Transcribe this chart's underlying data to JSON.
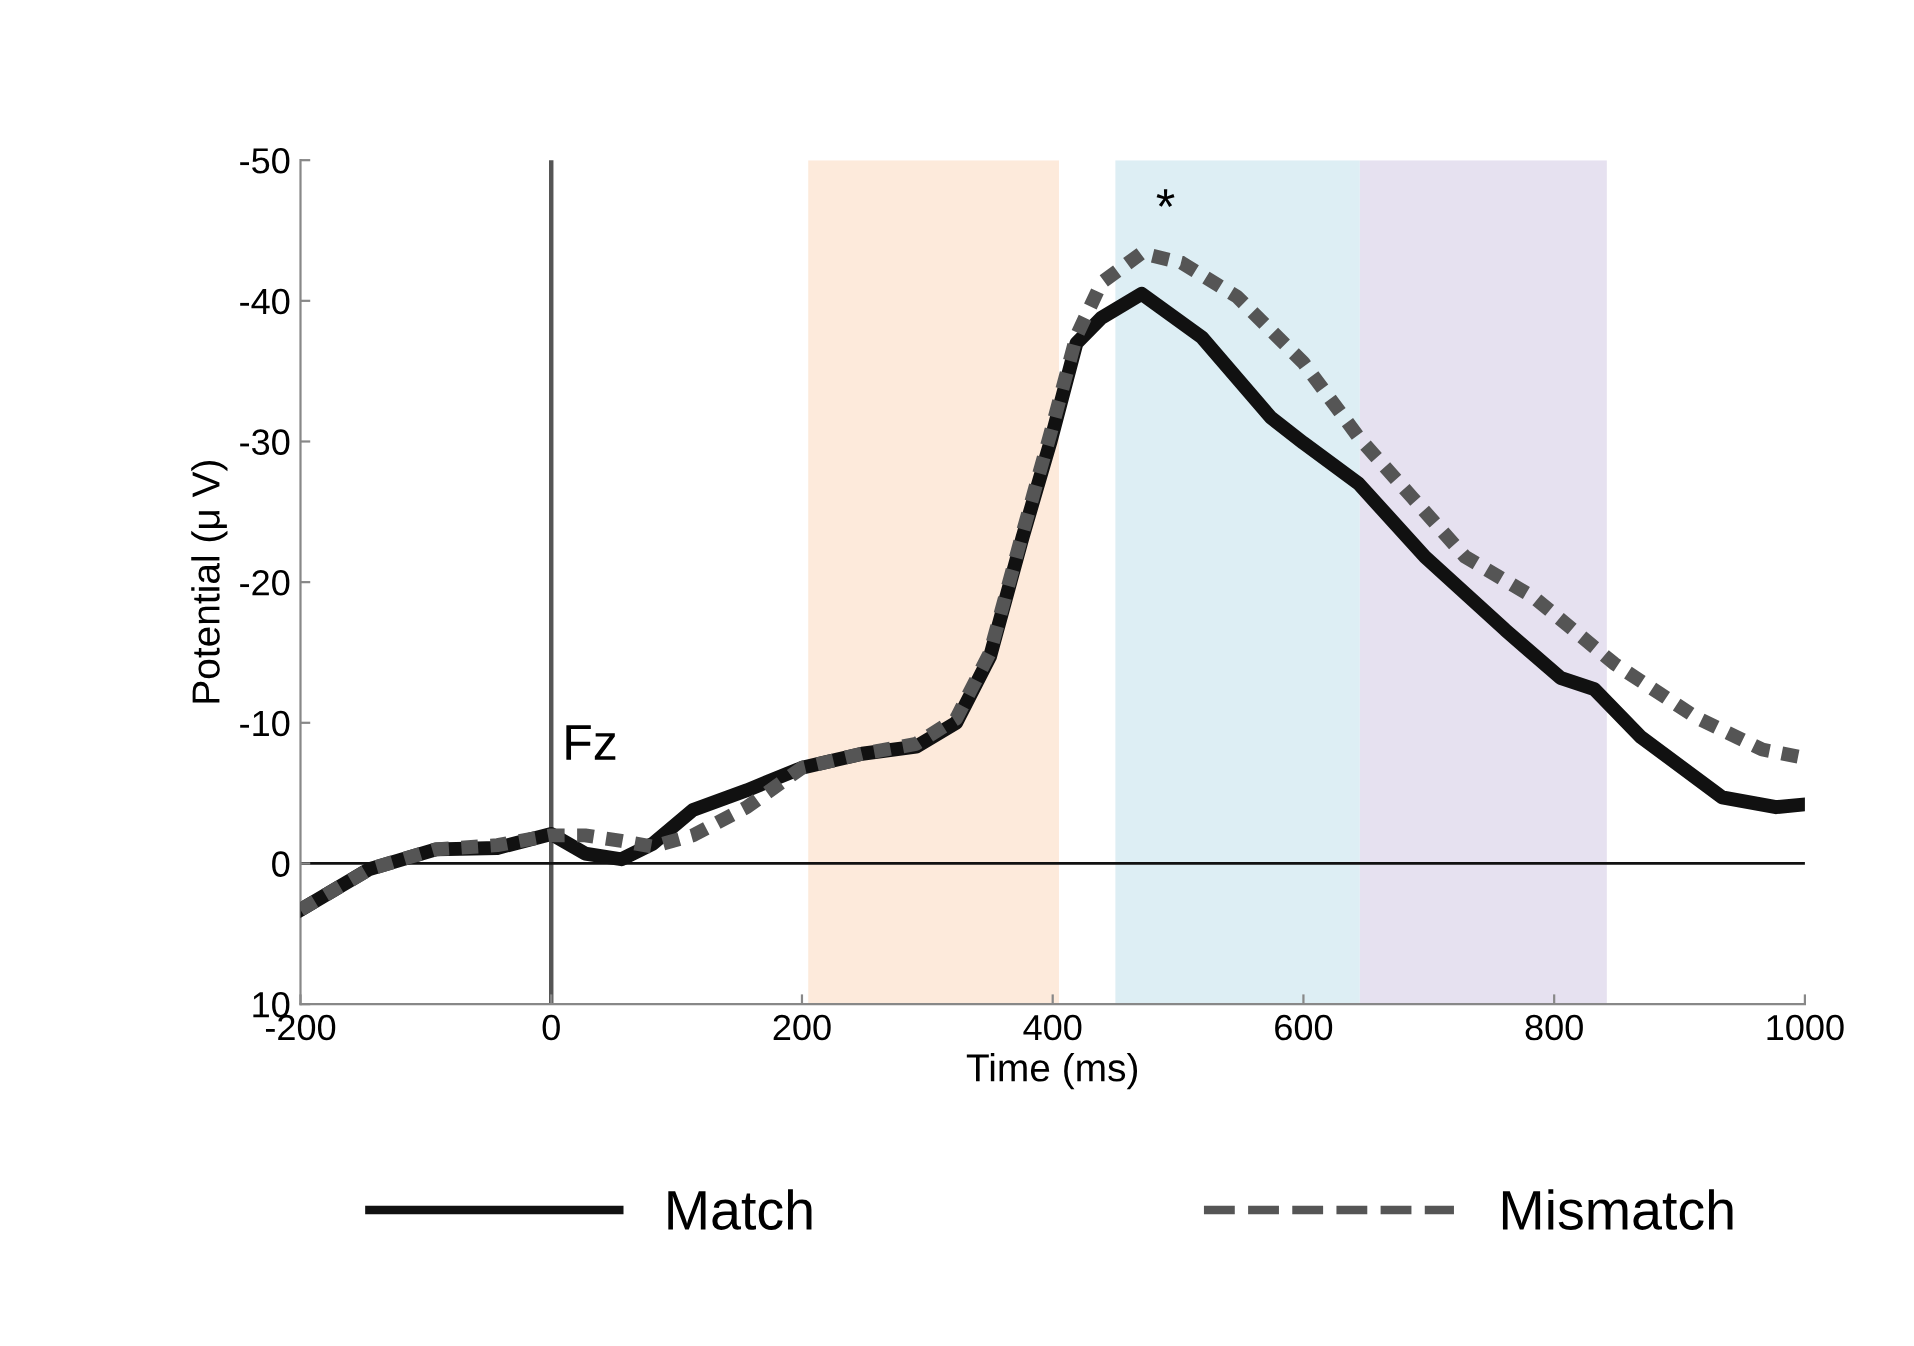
{
  "chart_data": {
    "type": "line",
    "xlabel": "Time (ms)",
    "ylabel": "Potential (μ V)",
    "xlim": [
      -200,
      1000
    ],
    "xticks": [
      -200,
      0,
      200,
      400,
      600,
      800,
      1000
    ],
    "ylim": [
      10,
      -50
    ],
    "yticks": [
      10,
      0,
      -10,
      -20,
      -30,
      -40,
      -50
    ],
    "grid": false,
    "legend": "bottom",
    "series": [
      {
        "name": "Match",
        "color": "#111111",
        "line_style": "solid",
        "x": [
          -200,
          -145,
          -92,
          -43,
          0,
          27,
          56,
          81,
          113,
          156,
          200,
          248,
          291,
          323,
          350,
          376,
          398,
          419,
          439,
          471,
          519,
          574,
          600,
          644,
          697,
          761,
          805,
          832,
          869,
          934,
          977,
          1000
        ],
        "values": [
          3.3,
          0.4,
          -1.0,
          -1.1,
          -2.1,
          -0.7,
          -0.3,
          -1.4,
          -3.8,
          -5.2,
          -6.8,
          -7.8,
          -8.3,
          -10.0,
          -14.7,
          -23.2,
          -29.9,
          -37.0,
          -38.8,
          -40.5,
          -37.4,
          -31.7,
          -29.9,
          -27.0,
          -21.8,
          -16.6,
          -13.2,
          -12.4,
          -9.0,
          -4.7,
          -4.0,
          -4.2
        ]
      },
      {
        "name": "Mismatch",
        "color": "#555555",
        "line_style": "dotted",
        "x": [
          -200,
          -145,
          -92,
          -43,
          0,
          27,
          56,
          81,
          113,
          156,
          200,
          248,
          291,
          323,
          350,
          376,
          398,
          419,
          439,
          471,
          503,
          547,
          600,
          644,
          687,
          729,
          784,
          848,
          913,
          966,
          1000
        ],
        "values": [
          3.3,
          0.4,
          -1.0,
          -1.3,
          -2.0,
          -2.0,
          -1.6,
          -1.2,
          -2.0,
          -4.0,
          -6.8,
          -7.8,
          -8.5,
          -10.3,
          -15.0,
          -23.5,
          -30.5,
          -37.5,
          -41.3,
          -43.4,
          -42.7,
          -40.3,
          -35.6,
          -30.3,
          -26.0,
          -21.8,
          -18.9,
          -14.2,
          -10.4,
          -8.1,
          -7.5
        ]
      }
    ],
    "ref_lines": [
      {
        "axis": "x",
        "value": 0,
        "color": "#555555"
      },
      {
        "axis": "y",
        "value": 0,
        "color": "#111111"
      }
    ],
    "bands": [
      {
        "axis": "x",
        "from": 205,
        "to": 405,
        "color": "#fdeadb"
      },
      {
        "axis": "x",
        "from": 450,
        "to": 645,
        "color": "#ddeef4"
      },
      {
        "axis": "x",
        "from": 645,
        "to": 842,
        "color": "#e6e1f0"
      }
    ],
    "annotations": [
      "Fz",
      "*"
    ]
  }
}
